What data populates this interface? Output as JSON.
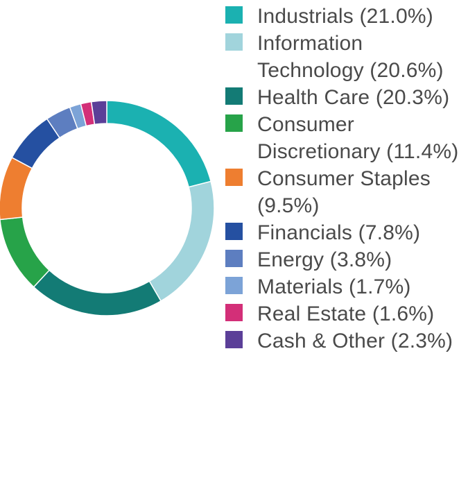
{
  "chart_data": {
    "type": "pie",
    "title": "",
    "categories": [
      "Industrials (21.0%)",
      "Information Technology (20.6%)",
      "Health Care (20.3%)",
      "Consumer Discretionary (11.4%)",
      "Consumer Staples (9.5%)",
      "Financials (7.8%)",
      "Energy (3.8%)",
      "Materials (1.7%)",
      "Real Estate (1.6%)",
      "Cash & Other (2.3%)"
    ],
    "values": [
      21.0,
      20.6,
      20.3,
      11.4,
      9.5,
      7.8,
      3.8,
      1.7,
      1.6,
      2.3
    ],
    "colors": [
      "#1bb1b1",
      "#a1d4dc",
      "#137b75",
      "#27a349",
      "#ee7e30",
      "#2550a1",
      "#5d7ec0",
      "#7ca3d7",
      "#d32f78",
      "#5b3f98"
    ],
    "legend": "right"
  }
}
